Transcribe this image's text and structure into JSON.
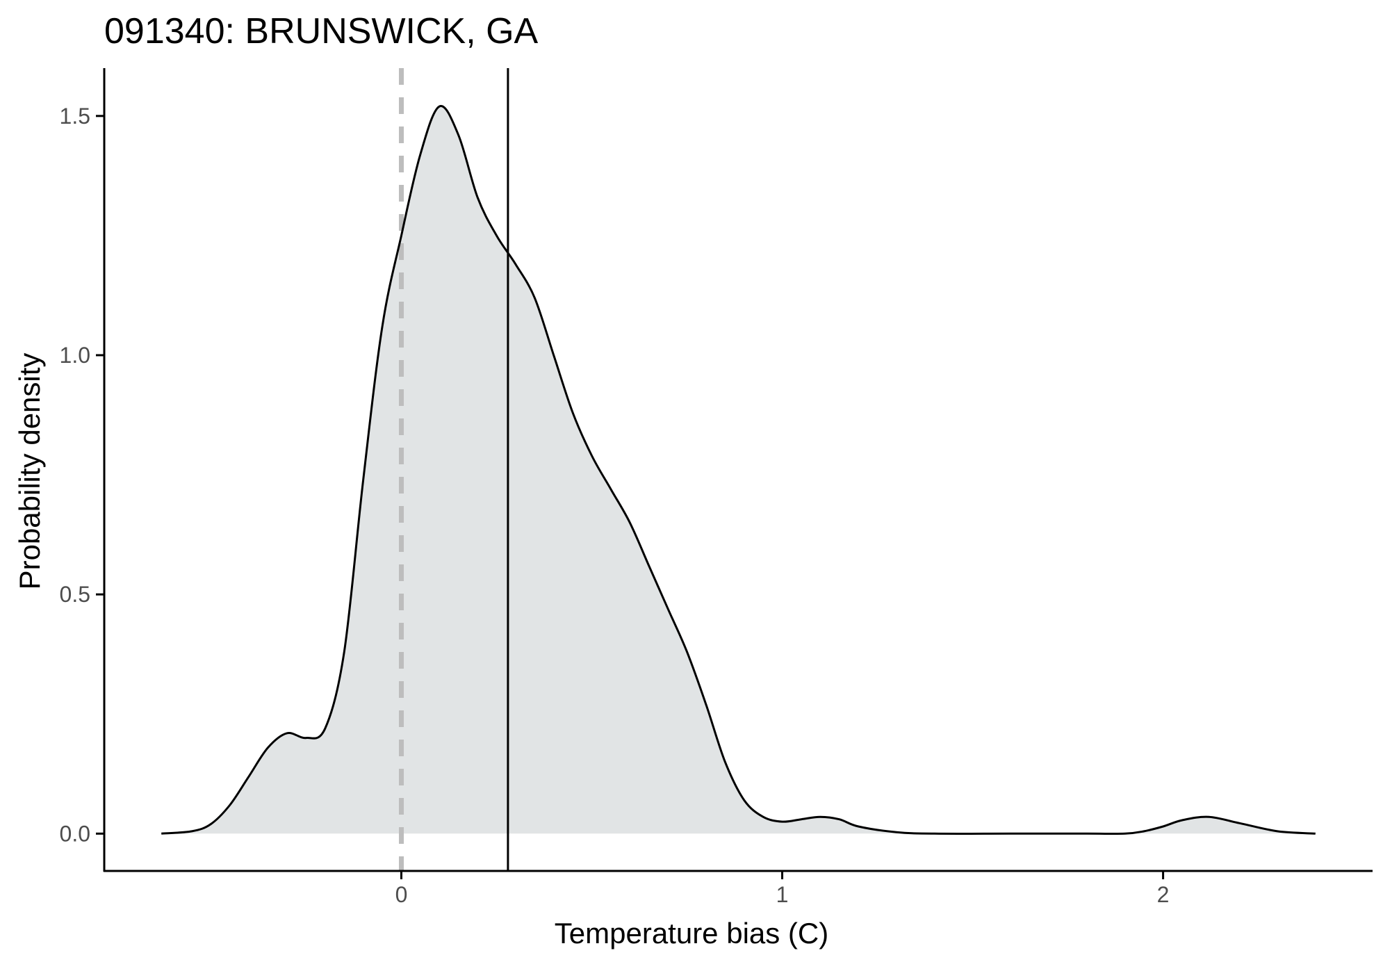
{
  "chart_data": {
    "type": "area",
    "title": "091340: BRUNSWICK, GA",
    "xlabel": "Temperature bias (C)",
    "ylabel": "Probability density",
    "xlim": [
      -0.78,
      2.55
    ],
    "ylim": [
      -0.078,
      1.6
    ],
    "x_ticks": [
      0,
      1,
      2
    ],
    "x_tick_labels": [
      "0",
      "1",
      "2"
    ],
    "y_ticks": [
      0.0,
      0.5,
      1.0,
      1.5
    ],
    "y_tick_labels": [
      "0.0",
      "0.5",
      "1.0",
      "1.5"
    ],
    "grid": false,
    "legend": "none",
    "density": {
      "x": [
        -0.63,
        -0.55,
        -0.5,
        -0.45,
        -0.4,
        -0.35,
        -0.3,
        -0.25,
        -0.2,
        -0.15,
        -0.1,
        -0.05,
        0.0,
        0.05,
        0.1,
        0.15,
        0.2,
        0.25,
        0.3,
        0.35,
        0.4,
        0.45,
        0.5,
        0.55,
        0.6,
        0.65,
        0.7,
        0.75,
        0.8,
        0.85,
        0.9,
        0.95,
        1.0,
        1.05,
        1.1,
        1.15,
        1.2,
        1.3,
        1.4,
        1.6,
        1.8,
        1.9,
        1.95,
        2.0,
        2.05,
        2.12,
        2.2,
        2.3,
        2.4
      ],
      "y": [
        0.0,
        0.005,
        0.02,
        0.06,
        0.12,
        0.18,
        0.21,
        0.2,
        0.22,
        0.38,
        0.74,
        1.06,
        1.25,
        1.42,
        1.52,
        1.46,
        1.33,
        1.25,
        1.19,
        1.12,
        1.0,
        0.88,
        0.79,
        0.72,
        0.65,
        0.56,
        0.47,
        0.38,
        0.27,
        0.15,
        0.07,
        0.035,
        0.025,
        0.03,
        0.035,
        0.03,
        0.015,
        0.003,
        0.0,
        0.0,
        0.0,
        0.0,
        0.005,
        0.015,
        0.028,
        0.035,
        0.022,
        0.005,
        0.0
      ]
    },
    "reference_lines": [
      {
        "type": "vertical",
        "x": 0.0,
        "style": "dashed",
        "color": "#bdbdbd"
      },
      {
        "type": "vertical",
        "x": 0.28,
        "style": "solid",
        "color": "#000000"
      }
    ],
    "colors": {
      "fill": "#e1e4e5",
      "curve": "#000000",
      "axis": "#000000",
      "tick_label": "#4d4d4d",
      "zero_line": "#bdbdbd",
      "mean_line": "#000000"
    }
  }
}
